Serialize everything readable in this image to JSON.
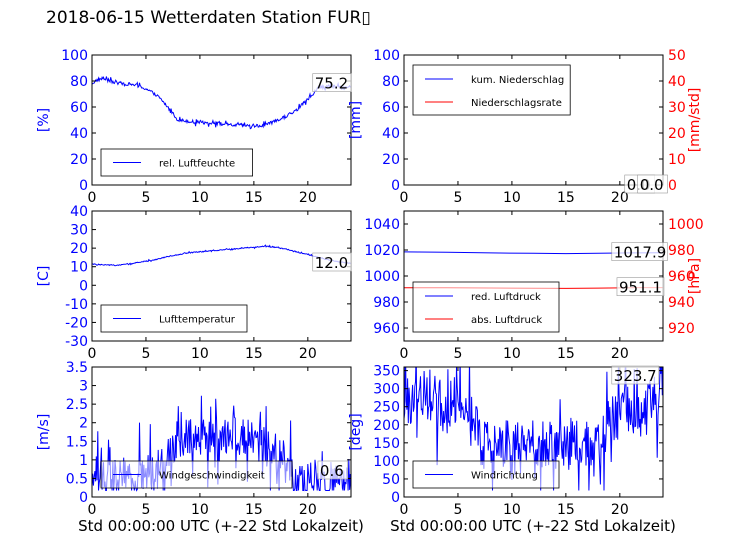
{
  "figure": {
    "title": "2018-06-15 Wetterdaten Station FUR",
    "title_glyph": "▯",
    "xlabel": "Std 00:00:00 UTC (+-22 Std Lokalzeit)"
  },
  "colors": {
    "blue": "#0000ff",
    "red": "#ff0000",
    "black": "#000000"
  },
  "chart_data": [
    {
      "id": "humidity",
      "type": "line",
      "ylabel": "[%]",
      "ylim": [
        0,
        100
      ],
      "yticks": [
        0,
        20,
        40,
        60,
        80,
        100
      ],
      "xlim": [
        0,
        24
      ],
      "xticks": [
        0,
        5,
        10,
        15,
        20
      ],
      "legend": {
        "placement": "lower-left"
      },
      "annotations": [
        "75.2"
      ],
      "series": [
        {
          "name": "rel. Luftfeuchte",
          "axis": "left",
          "color": "#0000ff",
          "noise": 2,
          "x": [
            0,
            0.5,
            1,
            2,
            3,
            4,
            5,
            6,
            6.5,
            7,
            7.5,
            8,
            9,
            10,
            11,
            12,
            13,
            14,
            15,
            16,
            17,
            18,
            19,
            20,
            21,
            22,
            23,
            24
          ],
          "y": [
            78,
            81,
            82,
            79,
            78,
            77,
            74,
            69,
            65,
            60,
            55,
            50,
            49,
            48,
            48,
            47,
            46,
            46,
            45,
            46,
            49,
            53,
            58,
            66,
            75,
            76,
            75,
            75
          ]
        }
      ]
    },
    {
      "id": "precip",
      "type": "line",
      "ylabel": "[mm]",
      "ylim": [
        0,
        100
      ],
      "yticks": [
        0,
        20,
        40,
        60,
        80,
        100
      ],
      "ylabel2": "[mm/std]",
      "ylim2": [
        0,
        50
      ],
      "yticks2": [
        0,
        10,
        20,
        30,
        40,
        50
      ],
      "xlim": [
        0,
        24
      ],
      "xticks": [
        0,
        5,
        10,
        15,
        20
      ],
      "legend": {
        "placement": "upper-left"
      },
      "annotations": [
        "0.0",
        "0.0"
      ],
      "series": [
        {
          "name": "kum. Niederschlag",
          "axis": "left",
          "color": "#0000ff",
          "noise": 0,
          "x": [
            0,
            24
          ],
          "y": [
            0,
            0
          ]
        },
        {
          "name": "Niederschlagsrate",
          "axis": "right",
          "color": "#ff0000",
          "noise": 0,
          "x": [
            0,
            24
          ],
          "y": [
            0,
            0
          ]
        }
      ]
    },
    {
      "id": "temperature",
      "type": "line",
      "ylabel": "[C]",
      "ylim": [
        -30,
        40
      ],
      "yticks": [
        -30,
        -20,
        -10,
        0,
        10,
        20,
        30,
        40
      ],
      "xlim": [
        0,
        24
      ],
      "xticks": [
        0,
        5,
        10,
        15,
        20
      ],
      "legend": {
        "placement": "lower-left"
      },
      "annotations": [
        "12.0"
      ],
      "series": [
        {
          "name": "Lufttemperatur",
          "axis": "left",
          "color": "#0000ff",
          "noise": 0.4,
          "x": [
            0,
            1,
            2,
            3,
            4,
            5,
            6,
            7,
            8,
            9,
            10,
            11,
            12,
            13,
            14,
            15,
            16,
            17,
            18,
            19,
            20,
            21,
            22,
            23,
            24
          ],
          "y": [
            11.5,
            11,
            10.8,
            11.2,
            12,
            13,
            14,
            15.5,
            16.5,
            17.5,
            18,
            18.5,
            19,
            19.5,
            20,
            20.5,
            21,
            20.5,
            19.5,
            18,
            16.5,
            15,
            13.5,
            12.5,
            12
          ]
        }
      ]
    },
    {
      "id": "pressure",
      "type": "line",
      "ylabel": "",
      "ylim": [
        950,
        1050
      ],
      "yticks": [
        960,
        980,
        1000,
        1020,
        1040
      ],
      "ylabel2": "[hPa]",
      "ylim2": [
        910,
        1010
      ],
      "yticks2": [
        920,
        940,
        960,
        980,
        1000
      ],
      "xlim": [
        0,
        24
      ],
      "xticks": [
        0,
        5,
        10,
        15,
        20
      ],
      "legend": {
        "placement": "lower-left"
      },
      "annotations": [
        "1017.9",
        "951.1"
      ],
      "series": [
        {
          "name": "red. Luftdruck",
          "axis": "left",
          "color": "#0000ff",
          "noise": 0,
          "x": [
            0,
            4,
            8,
            12,
            15,
            18,
            21,
            24
          ],
          "y": [
            1018.5,
            1018.2,
            1017.8,
            1017.5,
            1017.2,
            1017.5,
            1017.8,
            1017.9
          ]
        },
        {
          "name": "abs. Luftdruck",
          "axis": "right",
          "color": "#ff0000",
          "noise": 0,
          "x": [
            0,
            4,
            8,
            12,
            15,
            18,
            21,
            24
          ],
          "y": [
            951.0,
            951.0,
            950.8,
            950.6,
            950.5,
            950.7,
            951.0,
            951.1
          ]
        }
      ]
    },
    {
      "id": "windspeed",
      "type": "line",
      "ylabel": "[m/s]",
      "ylim": [
        0,
        3.5
      ],
      "yticks": [
        0,
        0.5,
        1,
        1.5,
        2,
        2.5,
        3,
        3.5
      ],
      "xlim": [
        0,
        24
      ],
      "xticks": [
        0,
        5,
        10,
        15,
        20
      ],
      "legend": {
        "placement": "lower-center"
      },
      "annotations": [
        "0.6"
      ],
      "series": [
        {
          "name": "Windgeschwindigkeit",
          "axis": "left",
          "color": "#0000ff",
          "noise": 0.9,
          "x": [
            0,
            2,
            4,
            6,
            6.5,
            7,
            8,
            9,
            10,
            11,
            12,
            13,
            14,
            15,
            16,
            17,
            18,
            19,
            20,
            21,
            22,
            23,
            24
          ],
          "y": [
            0.4,
            0.5,
            0.6,
            0.7,
            0.9,
            1.3,
            1.6,
            1.7,
            1.6,
            1.6,
            1.7,
            1.7,
            1.6,
            1.5,
            1.4,
            1.2,
            0.8,
            0.4,
            0.4,
            0.5,
            0.4,
            0.5,
            0.6
          ]
        }
      ]
    },
    {
      "id": "winddir",
      "type": "line",
      "ylabel": "[deg]",
      "ylim": [
        0,
        360
      ],
      "yticks": [
        0,
        50,
        100,
        150,
        200,
        250,
        300,
        350
      ],
      "xlim": [
        0,
        24
      ],
      "xticks": [
        0,
        5,
        10,
        15,
        20
      ],
      "legend": {
        "placement": "lower-left"
      },
      "annotations": [
        "323.7"
      ],
      "series": [
        {
          "name": "Windrichtung",
          "axis": "left",
          "color": "#0000ff",
          "noise": 120,
          "x": [
            0,
            1,
            2,
            3,
            4,
            5,
            6,
            7,
            8,
            10,
            12,
            14,
            16,
            17,
            18,
            19,
            20,
            21,
            22,
            23,
            24
          ],
          "y": [
            260,
            280,
            290,
            270,
            250,
            280,
            270,
            160,
            130,
            150,
            150,
            140,
            150,
            140,
            130,
            200,
            220,
            250,
            230,
            260,
            323.7
          ]
        }
      ]
    }
  ]
}
